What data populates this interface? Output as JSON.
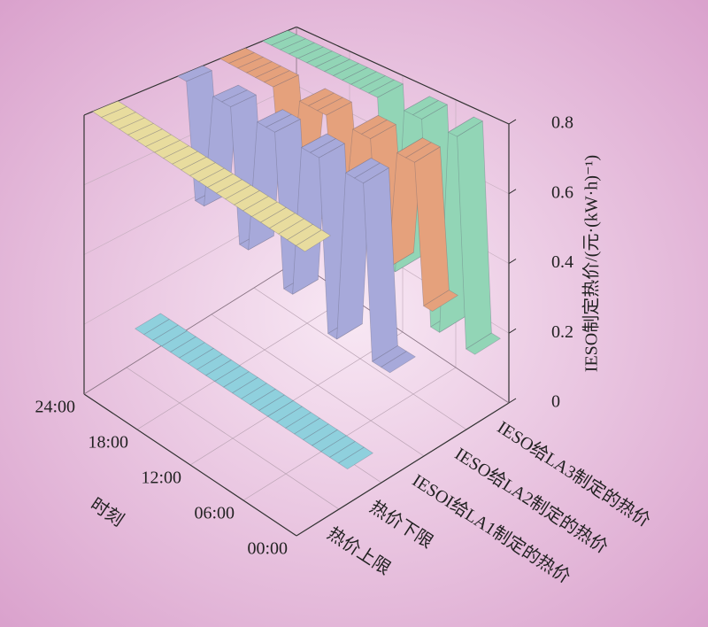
{
  "chart_data": {
    "type": "ribbon3d",
    "xlabel": "时刻",
    "ylabel": "IESO制定热价/(元·(kW·h)⁻¹)",
    "x": [
      0,
      1,
      2,
      3,
      4,
      5,
      6,
      7,
      8,
      9,
      10,
      11,
      12,
      13,
      14,
      15,
      16,
      17,
      18,
      19,
      20,
      21,
      22,
      23,
      24
    ],
    "xlim": [
      0,
      24
    ],
    "xticks": [
      {
        "value": 0,
        "label": "00:00"
      },
      {
        "value": 6,
        "label": "06:00"
      },
      {
        "value": 12,
        "label": "12:00"
      },
      {
        "value": 18,
        "label": "18:00"
      },
      {
        "value": 24,
        "label": "24:00"
      }
    ],
    "ylim": [
      0,
      0.8
    ],
    "yticks": [
      0,
      0.2,
      0.4,
      0.6,
      0.8
    ],
    "series": [
      {
        "name": "热价上限",
        "color": "#e8dc9e",
        "values": [
          0.8,
          0.8,
          0.8,
          0.8,
          0.8,
          0.8,
          0.8,
          0.8,
          0.8,
          0.8,
          0.8,
          0.8,
          0.8,
          0.8,
          0.8,
          0.8,
          0.8,
          0.8,
          0.8,
          0.8,
          0.8,
          0.8,
          0.8,
          0.8,
          0.8
        ]
      },
      {
        "name": "热价下限",
        "color": "#8fd0dd",
        "values": [
          0.1,
          0.1,
          0.1,
          0.1,
          0.1,
          0.1,
          0.1,
          0.1,
          0.1,
          0.1,
          0.1,
          0.1,
          0.1,
          0.1,
          0.1,
          0.1,
          0.1,
          0.1,
          0.1,
          0.1,
          0.1,
          0.1,
          0.1,
          0.1,
          0.1
        ]
      },
      {
        "name": "IESOI给LA1制定的热价",
        "color": "#a7a9da",
        "values": [
          0.3,
          0.3,
          0.3,
          0.8,
          0.8,
          0.8,
          0.3,
          0.3,
          0.8,
          0.8,
          0.8,
          0.35,
          0.35,
          0.8,
          0.8,
          0.8,
          0.4,
          0.4,
          0.8,
          0.8,
          0.8,
          0.45,
          0.45,
          0.8,
          0.8
        ]
      },
      {
        "name": "IESO给LA2制定的热价",
        "color": "#e5a17c",
        "values": [
          0.4,
          0.4,
          0.8,
          0.8,
          0.8,
          0.45,
          0.45,
          0.8,
          0.8,
          0.8,
          0.5,
          0.5,
          0.8,
          0.8,
          0.8,
          0.8,
          0.5,
          0.5,
          0.8,
          0.8,
          0.8,
          0.8,
          0.8,
          0.8,
          0.8
        ]
      },
      {
        "name": "IESO给LA3制定的热价",
        "color": "#92d5b6",
        "values": [
          0.2,
          0.2,
          0.8,
          0.8,
          0.2,
          0.2,
          0.8,
          0.8,
          0.8,
          0.3,
          0.3,
          0.8,
          0.8,
          0.8,
          0.8,
          0.8,
          0.8,
          0.8,
          0.8,
          0.8,
          0.8,
          0.8,
          0.8,
          0.8,
          0.8
        ]
      }
    ]
  }
}
